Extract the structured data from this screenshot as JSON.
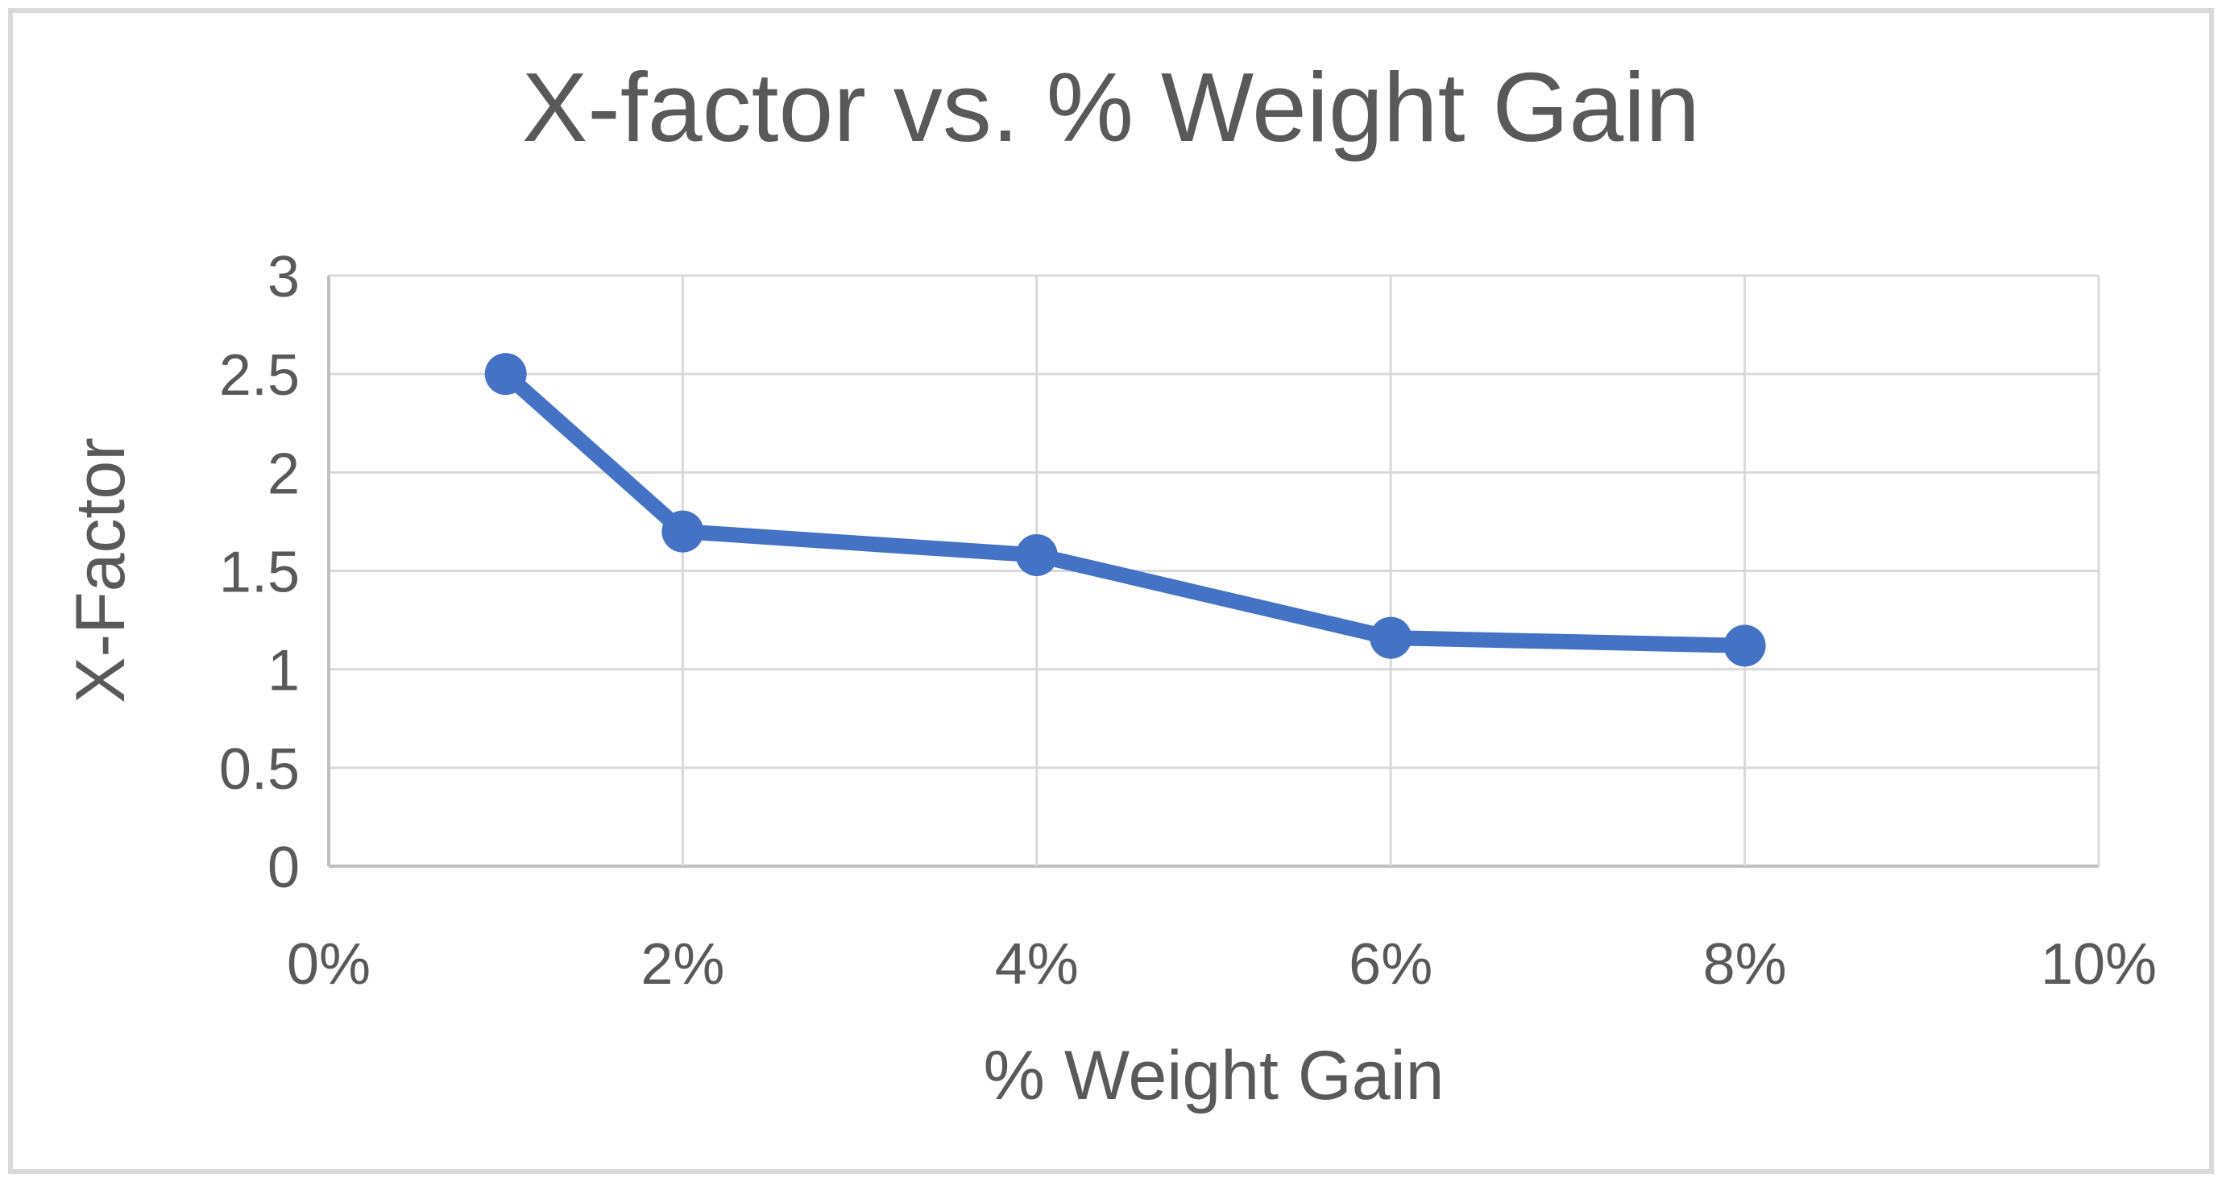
{
  "chart_data": {
    "type": "line",
    "title": "X-factor vs. % Weight Gain",
    "xlabel": "% Weight Gain",
    "ylabel": "X-Factor",
    "xlim": [
      0,
      10
    ],
    "ylim": [
      0,
      3
    ],
    "grid": true,
    "legend": "none",
    "x_ticks": {
      "labels": [
        "0%",
        "2%",
        "4%",
        "6%",
        "8%",
        "10%"
      ],
      "values": [
        0,
        2,
        4,
        6,
        8,
        10
      ]
    },
    "y_ticks": {
      "labels": [
        "0",
        "0.5",
        "1",
        "1.5",
        "2",
        "2.5",
        "3"
      ],
      "values": [
        0,
        0.5,
        1,
        1.5,
        2,
        2.5,
        3
      ]
    },
    "series": [
      {
        "name": "X-factor",
        "marker": "circle",
        "points": [
          {
            "x": 1,
            "y": 2.5
          },
          {
            "x": 2,
            "y": 1.7
          },
          {
            "x": 4,
            "y": 1.58
          },
          {
            "x": 6,
            "y": 1.16
          },
          {
            "x": 8,
            "y": 1.12
          }
        ]
      }
    ]
  },
  "colors": {
    "line": "#4472C4",
    "marker": "#4472C4",
    "gridline": "#D9D9D9",
    "axis_line": "#BFBFBF",
    "text": "#595959",
    "frame_border": "#D9D9D9",
    "background": "#FFFFFF"
  }
}
